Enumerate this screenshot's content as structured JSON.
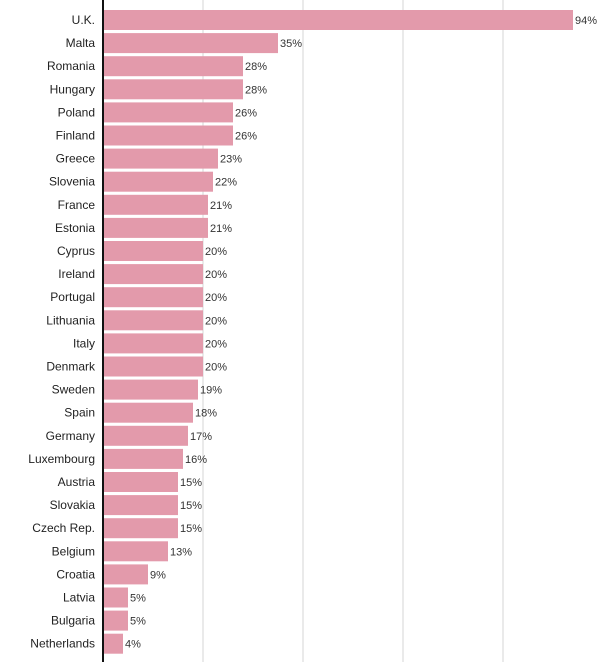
{
  "chart_data": {
    "type": "bar",
    "orientation": "horizontal",
    "title": "",
    "xlabel": "",
    "ylabel": "",
    "xlim": [
      0,
      100
    ],
    "grid": true,
    "bar_color": "#e39aab",
    "value_suffix": "%",
    "categories": [
      "U.K.",
      "Malta",
      "Romania",
      "Hungary",
      "Poland",
      "Finland",
      "Greece",
      "Slovenia",
      "France",
      "Estonia",
      "Cyprus",
      "Ireland",
      "Portugal",
      "Lithuania",
      "Italy",
      "Denmark",
      "Sweden",
      "Spain",
      "Germany",
      "Luxembourg",
      "Austria",
      "Slovakia",
      "Czech Rep.",
      "Belgium",
      "Croatia",
      "Latvia",
      "Bulgaria",
      "Netherlands"
    ],
    "values": [
      94,
      35,
      28,
      28,
      26,
      26,
      23,
      22,
      21,
      21,
      20,
      20,
      20,
      20,
      20,
      20,
      19,
      18,
      17,
      16,
      15,
      15,
      15,
      13,
      9,
      5,
      5,
      4
    ]
  }
}
